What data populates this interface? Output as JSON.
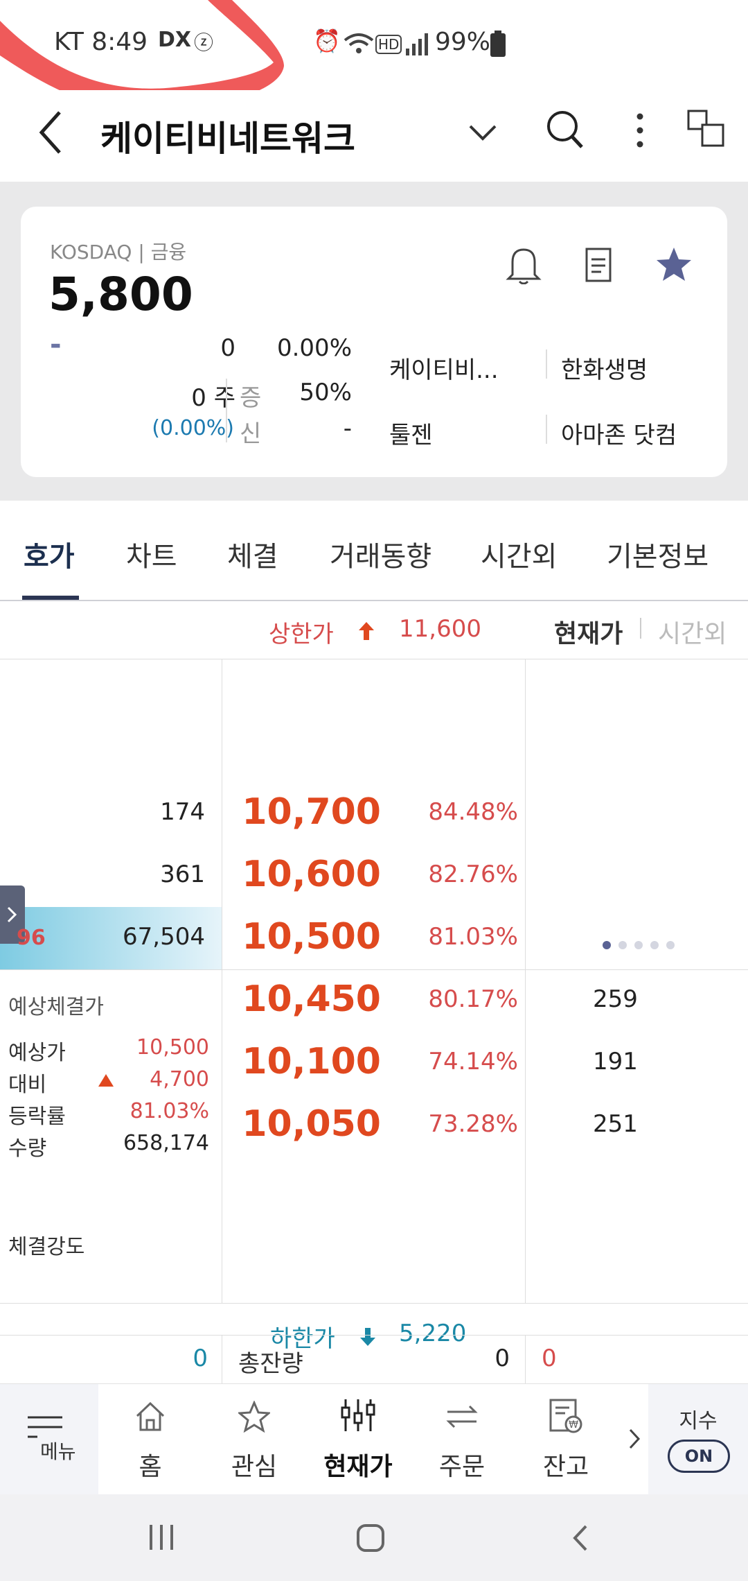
{
  "status_bar": {
    "carrier_time": "KT 8:49",
    "battery": "99%",
    "icons": [
      "dx-icon",
      "z-icon",
      "alarm-icon",
      "wifi-icon",
      "hd-icon",
      "signal-icon",
      "battery-icon"
    ]
  },
  "header": {
    "title": "케이티비네트워크",
    "icons": [
      "back-icon",
      "chevron-down-icon",
      "search-icon",
      "more-icon",
      "window-icon"
    ]
  },
  "summary": {
    "market": "KOSDAQ | 금융",
    "price": "5,800",
    "change_sign": "-",
    "change": "0",
    "change_pct": "0.00%",
    "volume": "0 주",
    "volume_pct": "(0.00%)",
    "margin_label": "증",
    "margin_value": "50%",
    "credit_label": "신",
    "credit_value": "-",
    "related": [
      "케이티비...",
      "한화생명",
      "툴젠",
      "아마존 닷컴"
    ],
    "icons": [
      "bell-icon",
      "memo-icon",
      "star-icon"
    ]
  },
  "tabs": [
    "호가",
    "차트",
    "체결",
    "거래동향",
    "시간외",
    "기본정보"
  ],
  "ladder": {
    "upper_label": "상한가",
    "upper_value": "11,600",
    "view_current": "현재가",
    "view_after": "시간외",
    "asks": [
      {
        "qty": "174",
        "price": "10,700",
        "pct": "84.48%"
      },
      {
        "qty": "361",
        "price": "10,600",
        "pct": "82.76%"
      },
      {
        "qty": "67,504",
        "price": "10,500",
        "pct": "81.03%",
        "marker": "96"
      }
    ],
    "bids": [
      {
        "price": "10,450",
        "pct": "80.17%",
        "qty": "259"
      },
      {
        "price": "10,100",
        "pct": "74.14%",
        "qty": "191"
      },
      {
        "price": "10,050",
        "pct": "73.28%",
        "qty": "251"
      }
    ],
    "expected_title": "예상체결가",
    "expected": [
      {
        "label": "예상가",
        "value": "10,500"
      },
      {
        "label": "대비",
        "value": "4,700"
      },
      {
        "label": "등락률",
        "value": "81.03%"
      },
      {
        "label": "수량",
        "value": "658,174"
      }
    ],
    "strength_label": "체결강도",
    "lower_label": "하한가",
    "lower_value": "5,220",
    "total_left": "0",
    "total_label": "총잔량",
    "total_mid": "0",
    "total_right": "0"
  },
  "bottom_nav": {
    "menu": "메뉴",
    "items": [
      "홈",
      "관심",
      "현재가",
      "주문",
      "잔고"
    ],
    "index_label": "지수",
    "index_toggle": "ON"
  },
  "colors": {
    "up_red": "#d64c4c",
    "price_orange": "#e0481f",
    "down_blue": "#1a88a6",
    "navy": "#2b3553"
  }
}
